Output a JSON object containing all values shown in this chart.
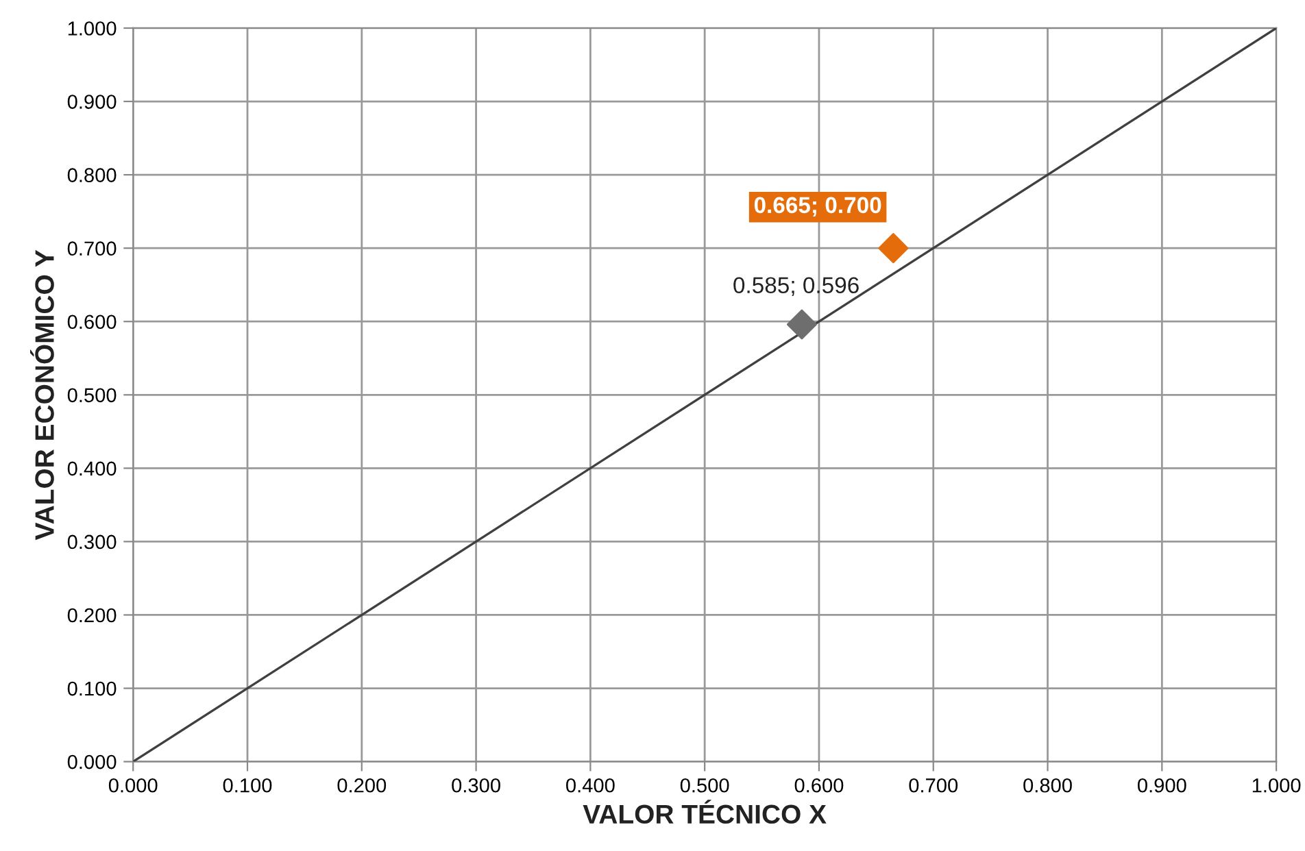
{
  "chart_data": {
    "type": "scatter",
    "xlabel": "VALOR TÉCNICO X",
    "ylabel": "VALOR ECONÓMICO Y",
    "xlim": [
      0,
      1
    ],
    "ylim": [
      0,
      1
    ],
    "xticks": [
      {
        "value": 0,
        "label": "0.000"
      },
      {
        "value": 0.1,
        "label": "0.100"
      },
      {
        "value": 0.2,
        "label": "0.200"
      },
      {
        "value": 0.3,
        "label": "0.300"
      },
      {
        "value": 0.4,
        "label": "0.400"
      },
      {
        "value": 0.5,
        "label": "0.500"
      },
      {
        "value": 0.6,
        "label": "0.600"
      },
      {
        "value": 0.7,
        "label": "0.700"
      },
      {
        "value": 0.8,
        "label": "0.800"
      },
      {
        "value": 0.9,
        "label": "0.900"
      },
      {
        "value": 1,
        "label": "1.000"
      }
    ],
    "yticks": [
      {
        "value": 0,
        "label": "0.000"
      },
      {
        "value": 0.1,
        "label": "0.100"
      },
      {
        "value": 0.2,
        "label": "0.200"
      },
      {
        "value": 0.3,
        "label": "0.300"
      },
      {
        "value": 0.4,
        "label": "0.400"
      },
      {
        "value": 0.5,
        "label": "0.500"
      },
      {
        "value": 0.6,
        "label": "0.600"
      },
      {
        "value": 0.7,
        "label": "0.700"
      },
      {
        "value": 0.8,
        "label": "0.800"
      },
      {
        "value": 0.9,
        "label": "0.900"
      },
      {
        "value": 1,
        "label": "1.000"
      }
    ],
    "grid": true,
    "series": [
      {
        "type": "line",
        "marker": "none",
        "color": "#404040",
        "x": [
          0,
          1
        ],
        "values": [
          0,
          1
        ]
      },
      {
        "marker": "diamond",
        "color": "#6e6e6e",
        "x": [
          0.585
        ],
        "values": [
          0.596
        ],
        "value_labels": [
          "0.585; 0.596"
        ]
      },
      {
        "marker": "diamond",
        "color": "#e46c0a",
        "x": [
          0.665
        ],
        "values": [
          0.7
        ],
        "value_labels": [
          "0.665; 0.700"
        ]
      }
    ]
  }
}
